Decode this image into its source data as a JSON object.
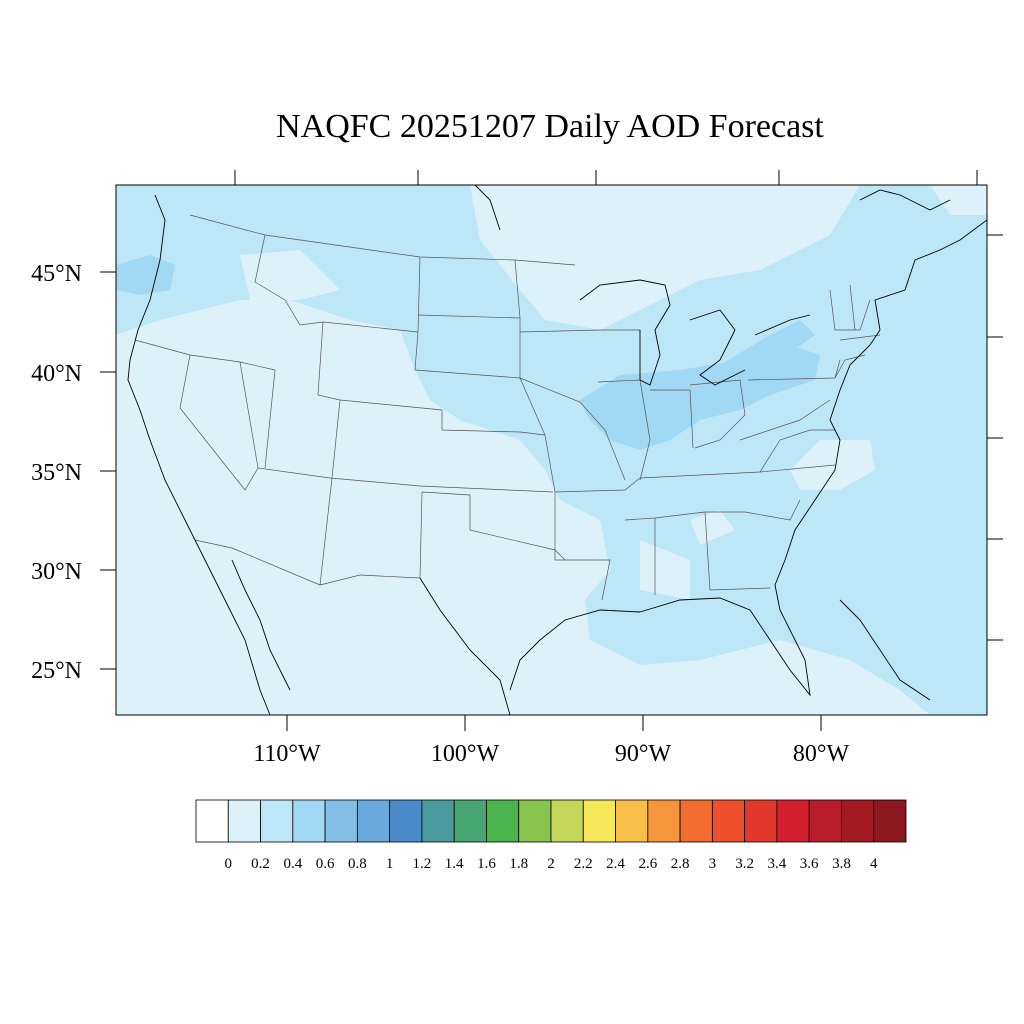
{
  "title": "NAQFC 20251207 Daily AOD Forecast",
  "colors": {
    "background": "#ffffff",
    "map_base": "#ddf1fa",
    "level_0_4": "#bde6f7",
    "level_0_6": "#a1d8f3",
    "state_lines": "#555555",
    "coast": "#000000"
  },
  "latitude_labels": [
    {
      "value": 45,
      "text": "45°N"
    },
    {
      "value": 40,
      "text": "40°N"
    },
    {
      "value": 35,
      "text": "35°N"
    },
    {
      "value": 30,
      "text": "30°N"
    },
    {
      "value": 25,
      "text": "25°N"
    }
  ],
  "longitude_labels": [
    {
      "value": -110,
      "text": "110°W"
    },
    {
      "value": -100,
      "text": "100°W"
    },
    {
      "value": -90,
      "text": "90°W"
    },
    {
      "value": -80,
      "text": "80°W"
    }
  ],
  "colorbar": {
    "labels": [
      "0",
      "0.2",
      "0.4",
      "0.6",
      "0.8",
      "1",
      "1.2",
      "1.4",
      "1.6",
      "1.8",
      "2",
      "2.2",
      "2.4",
      "2.6",
      "2.8",
      "3",
      "3.2",
      "3.4",
      "3.6",
      "3.8",
      "4"
    ],
    "colors": [
      "#ffffff",
      "#ddf1fa",
      "#bde6f7",
      "#a1d8f3",
      "#84bfe6",
      "#6aa9dc",
      "#4a8bc9",
      "#4b9b9e",
      "#48a672",
      "#4bb44c",
      "#89c54f",
      "#c5d75a",
      "#f6e65a",
      "#f7bf48",
      "#f6963c",
      "#f26b2f",
      "#ee4f2d",
      "#e3382d",
      "#d41f2e",
      "#b91c2a",
      "#a31a23",
      "#8e1820"
    ]
  }
}
